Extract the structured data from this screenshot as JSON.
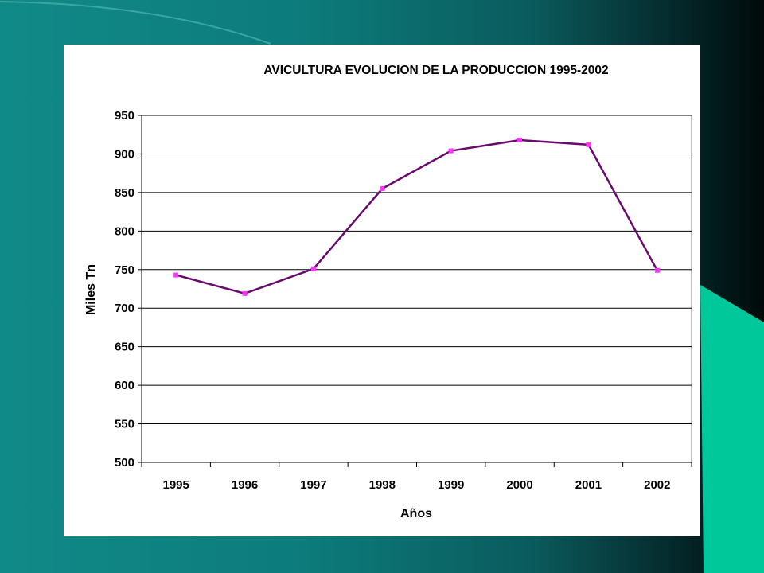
{
  "chart_data": {
    "type": "line",
    "title": "AVICULTURA  EVOLUCION DE LA PRODUCCION  1995-2002",
    "xlabel": "Años",
    "ylabel": "Miles Tn",
    "categories": [
      "1995",
      "1996",
      "1997",
      "1998",
      "1999",
      "2000",
      "2001",
      "2002"
    ],
    "values": [
      743,
      719,
      751,
      855,
      904,
      918,
      912,
      749
    ],
    "ylim": [
      500,
      950
    ],
    "yticks": [
      500,
      550,
      600,
      650,
      700,
      750,
      800,
      850,
      900,
      950
    ],
    "grid": true,
    "legend": "none",
    "colors": {
      "line": "#6a0a6e",
      "marker": "#ff33ff"
    }
  },
  "slide": {
    "colors": {
      "background": "#0d7b7b",
      "accent": "#00c89a",
      "chart_bg": "#ffffff"
    }
  }
}
